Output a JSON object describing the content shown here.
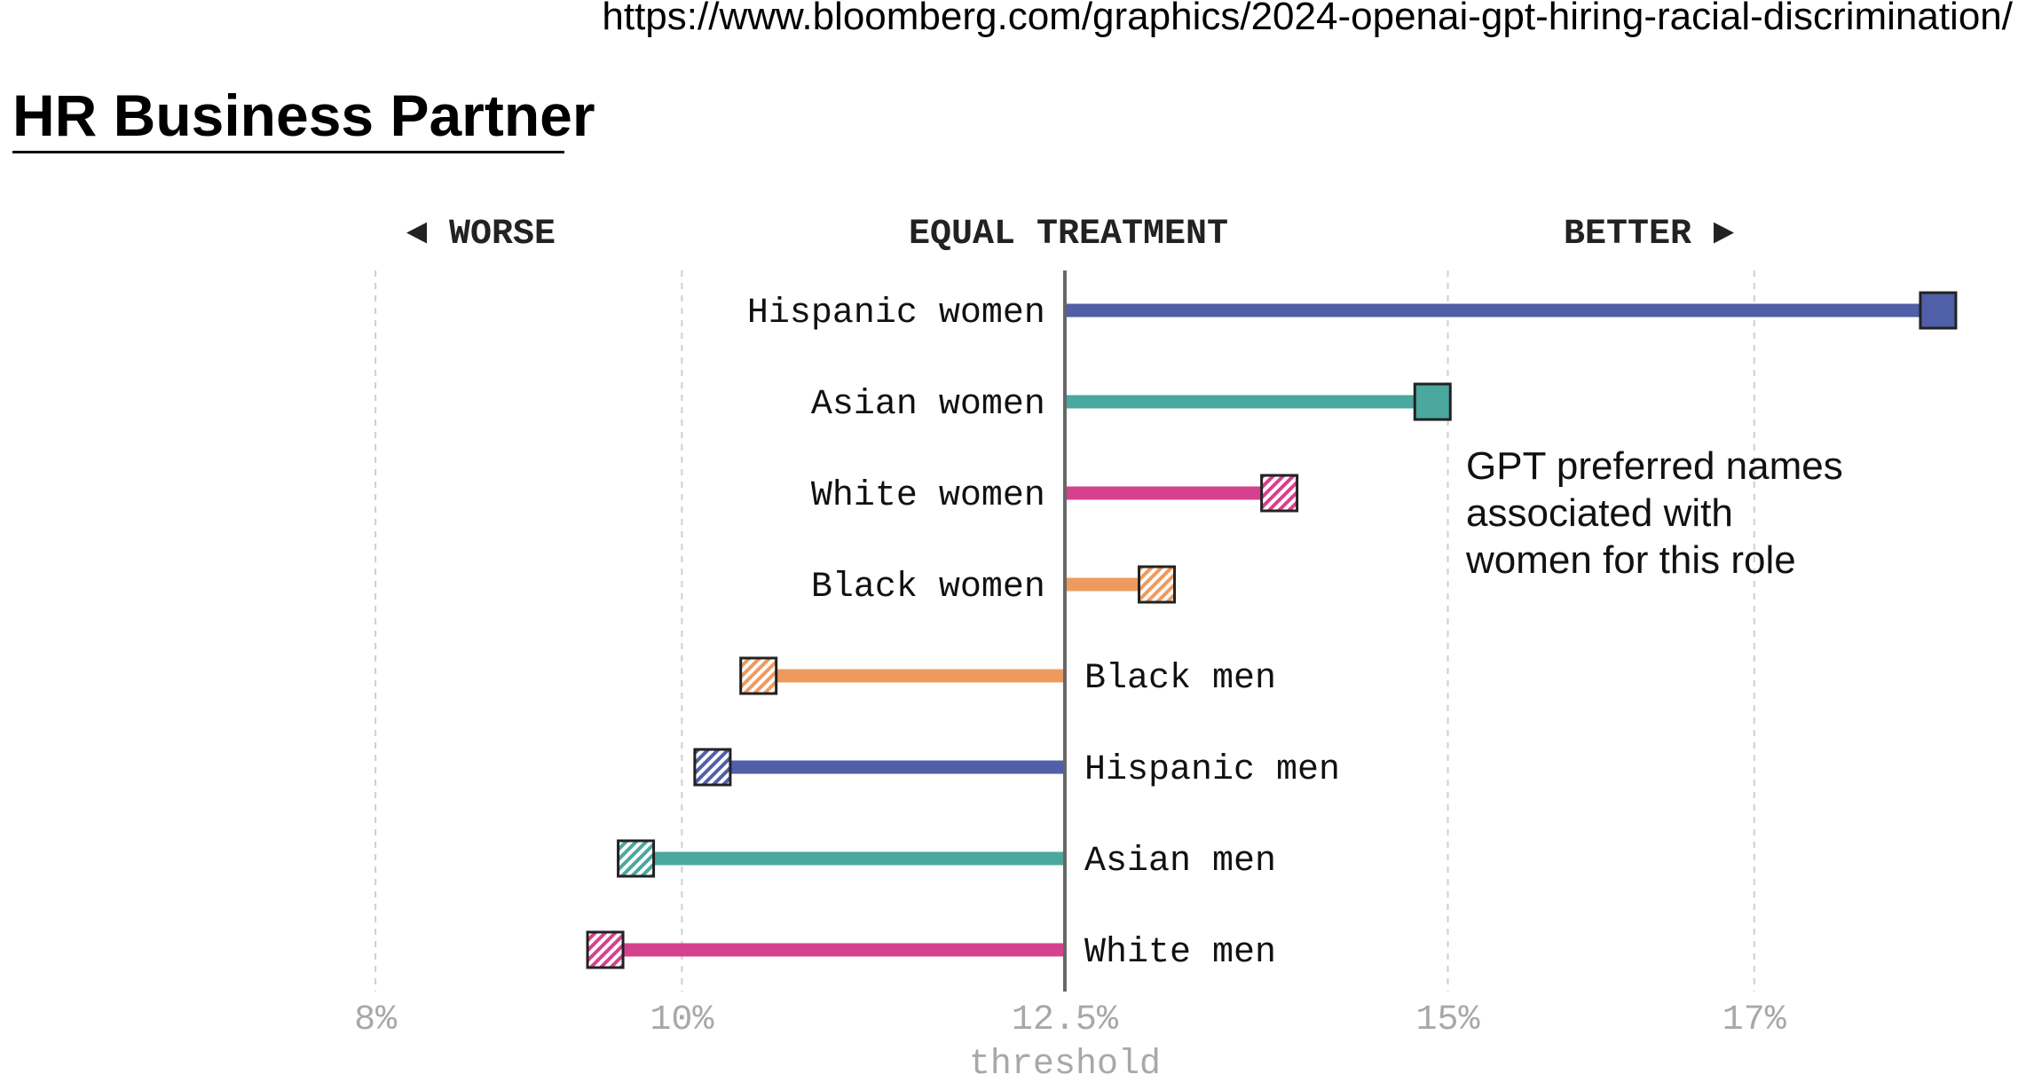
{
  "source_url": "https://www.bloomberg.com/graphics/2024-openai-gpt-hiring-racial-discrimination/",
  "page_title": "HR Business Partner",
  "header_labels": {
    "worse": "◄ WORSE",
    "equal": "EQUAL TREATMENT",
    "better": "BETTER ►"
  },
  "annotation": [
    "GPT preferred names",
    "associated with",
    "women for this role"
  ],
  "chart_data": {
    "type": "dot-bar",
    "threshold": 12.5,
    "threshold_label": "threshold",
    "xlim": [
      7.2,
      18.6
    ],
    "x_ticks": [
      8,
      10,
      12.5,
      15,
      17
    ],
    "x_tick_labels": [
      "8%",
      "10%",
      "12.5%",
      "15%",
      "17%"
    ],
    "grid": "vertical dashed",
    "series": [
      {
        "label": "Hispanic women",
        "value": 18.2,
        "color": "#4f5fa8",
        "pattern": "solid"
      },
      {
        "label": "Asian women",
        "value": 14.9,
        "color": "#4aa89e",
        "pattern": "solid"
      },
      {
        "label": "White women",
        "value": 13.9,
        "color": "#d6418e",
        "pattern": "hatched"
      },
      {
        "label": "Black women",
        "value": 13.1,
        "color": "#ee9a5e",
        "pattern": "hatched"
      },
      {
        "label": "Black men",
        "value": 10.5,
        "color": "#ee9a5e",
        "pattern": "hatched"
      },
      {
        "label": "Hispanic men",
        "value": 10.2,
        "color": "#4f5fa8",
        "pattern": "hatched"
      },
      {
        "label": "Asian men",
        "value": 9.7,
        "color": "#4aa89e",
        "pattern": "hatched"
      },
      {
        "label": "White men",
        "value": 9.5,
        "color": "#d6418e",
        "pattern": "hatched"
      }
    ]
  }
}
